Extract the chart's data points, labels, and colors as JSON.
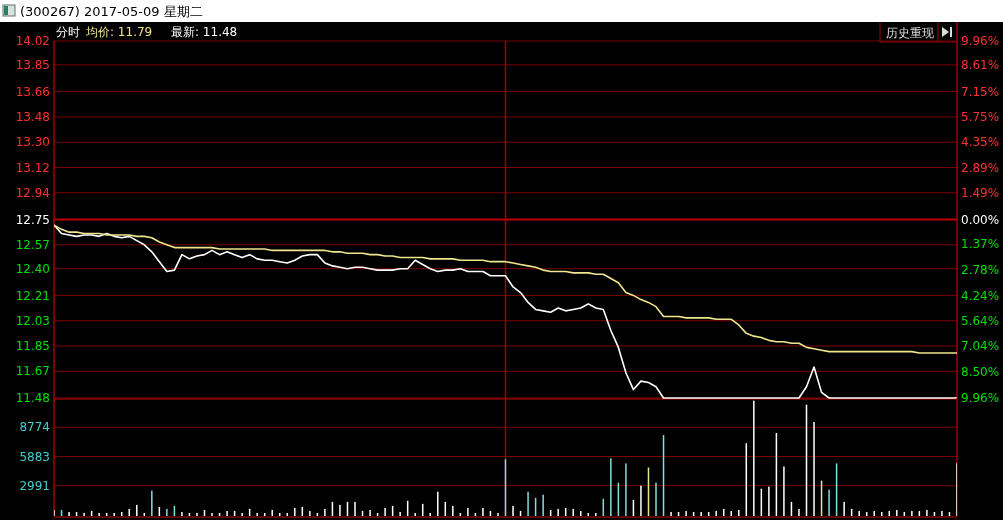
{
  "chart_data": [
    {
      "type": "line",
      "title": "(300267) 2017-05-09 星期二",
      "annotations": [
        "分时",
        "均价: 11.79",
        "最新: 11.48",
        "历史重现"
      ],
      "categories": [
        null,
        null,
        null,
        null,
        null,
        null,
        null,
        null,
        null,
        null,
        null,
        null,
        null,
        null,
        null,
        null,
        null,
        null,
        null,
        null,
        null,
        null,
        null,
        null,
        null,
        null,
        null,
        null,
        null,
        null,
        null,
        null,
        null,
        null,
        null,
        null,
        null,
        null,
        null,
        null,
        null,
        null,
        null,
        null,
        null,
        null,
        null,
        null,
        null,
        null,
        null,
        null,
        null,
        null,
        null,
        null,
        null,
        null,
        null,
        null,
        null,
        null,
        null,
        null,
        null,
        null,
        null,
        null,
        null,
        null,
        null,
        null,
        null,
        null,
        null,
        null,
        null,
        null,
        null,
        null,
        null,
        null,
        null,
        null,
        null,
        null,
        null,
        null,
        null,
        null,
        null,
        null,
        null,
        null,
        null,
        null,
        null,
        null,
        null,
        null,
        null,
        null,
        null,
        null,
        null,
        null,
        null,
        null,
        null,
        null,
        null,
        null,
        null,
        null,
        null,
        null,
        null,
        null,
        null,
        null,
        null
      ],
      "ylim": [
        11.48,
        14.02
      ],
      "yticks": [
        {
          "value": 11.48,
          "label": "11.48"
        },
        {
          "value": 11.67,
          "label": "11.67"
        },
        {
          "value": 11.85,
          "label": "11.85"
        },
        {
          "value": 12.03,
          "label": "12.03"
        },
        {
          "value": 12.21,
          "label": "12.21"
        },
        {
          "value": 12.4,
          "label": "12.40"
        },
        {
          "value": 12.57,
          "label": "12.57"
        },
        {
          "value": 12.75,
          "label": "12.75"
        },
        {
          "value": 12.94,
          "label": "12.94"
        },
        {
          "value": 13.12,
          "label": "13.12"
        },
        {
          "value": 13.3,
          "label": "13.30"
        },
        {
          "value": 13.48,
          "label": "13.48"
        },
        {
          "value": 13.66,
          "label": "13.66"
        },
        {
          "value": 13.85,
          "label": "13.85"
        },
        {
          "value": 14.02,
          "label": "14.02"
        }
      ],
      "y2lim": [
        -9.96,
        9.96
      ],
      "y2ticks": [
        {
          "value": -9.96,
          "label": "9.96%"
        },
        {
          "value": -8.5,
          "label": "8.50%"
        },
        {
          "value": -7.04,
          "label": "7.04%"
        },
        {
          "value": -5.64,
          "label": "5.64%"
        },
        {
          "value": -4.24,
          "label": "4.24%"
        },
        {
          "value": -2.78,
          "label": "2.78%"
        },
        {
          "value": -1.37,
          "label": "1.37%"
        },
        {
          "value": 0,
          "label": "0.00%"
        },
        {
          "value": 1.49,
          "label": "1.49%"
        },
        {
          "value": 2.89,
          "label": "2.89%"
        },
        {
          "value": 4.35,
          "label": "4.35%"
        },
        {
          "value": 5.75,
          "label": "5.75%"
        },
        {
          "value": 7.15,
          "label": "7.15%"
        },
        {
          "value": 8.61,
          "label": "8.61%"
        },
        {
          "value": 9.96,
          "label": "9.96%"
        }
      ],
      "tick_labels": "y",
      "grid": "y",
      "ref_lines": [
        {
          "axis": "y",
          "value": 12.75,
          "color": "#c00000"
        }
      ],
      "series": [
        {
          "color": "#ffffff",
          "values": [
            12.71,
            12.65,
            12.64,
            12.63,
            12.64,
            12.64,
            12.63,
            12.65,
            12.63,
            12.62,
            12.63,
            12.6,
            12.57,
            12.52,
            12.45,
            12.38,
            12.39,
            12.5,
            12.47,
            12.49,
            12.5,
            12.53,
            12.5,
            12.52,
            12.5,
            12.48,
            12.5,
            12.47,
            12.46,
            12.46,
            12.45,
            12.44,
            12.46,
            12.49,
            12.5,
            12.5,
            12.44,
            12.42,
            12.41,
            12.4,
            12.41,
            12.41,
            12.4,
            12.39,
            12.39,
            12.39,
            12.4,
            12.4,
            12.46,
            12.43,
            12.4,
            12.38,
            12.39,
            12.39,
            12.4,
            12.38,
            12.38,
            12.38,
            12.35,
            12.35,
            12.35,
            12.27,
            12.23,
            12.16,
            12.11,
            12.1,
            12.09,
            12.12,
            12.1,
            12.11,
            12.12,
            12.15,
            12.12,
            12.11,
            11.96,
            11.84,
            11.66,
            11.54,
            11.6,
            11.59,
            11.56,
            11.48,
            11.48,
            11.48,
            11.48,
            11.48,
            11.48,
            11.48,
            11.48,
            11.48,
            11.48,
            11.48,
            11.48,
            11.48,
            11.48,
            11.48,
            11.48,
            11.48,
            11.48,
            11.48,
            11.56,
            11.7,
            11.52,
            11.48,
            11.48,
            11.48,
            11.48,
            11.48,
            11.48,
            11.48,
            11.48,
            11.48,
            11.48,
            11.48,
            11.48,
            11.48,
            11.48,
            11.48,
            11.48,
            11.48,
            11.48
          ]
        },
        {
          "color": "#f0e68c",
          "values": [
            12.71,
            12.68,
            12.66,
            12.66,
            12.65,
            12.65,
            12.65,
            12.64,
            12.64,
            12.64,
            12.64,
            12.63,
            12.63,
            12.62,
            12.59,
            12.57,
            12.55,
            12.55,
            12.55,
            12.55,
            12.55,
            12.55,
            12.54,
            12.54,
            12.54,
            12.54,
            12.54,
            12.54,
            12.54,
            12.53,
            12.53,
            12.53,
            12.53,
            12.53,
            12.53,
            12.53,
            12.53,
            12.52,
            12.52,
            12.51,
            12.51,
            12.51,
            12.5,
            12.5,
            12.49,
            12.49,
            12.48,
            12.48,
            12.48,
            12.48,
            12.47,
            12.47,
            12.47,
            12.47,
            12.46,
            12.46,
            12.46,
            12.46,
            12.45,
            12.45,
            12.45,
            12.44,
            12.43,
            12.42,
            12.41,
            12.39,
            12.38,
            12.38,
            12.38,
            12.37,
            12.37,
            12.37,
            12.36,
            12.36,
            12.33,
            12.3,
            12.23,
            12.21,
            12.18,
            12.16,
            12.13,
            12.06,
            12.06,
            12.06,
            12.05,
            12.05,
            12.05,
            12.05,
            12.04,
            12.04,
            12.04,
            12.0,
            11.94,
            11.92,
            11.91,
            11.89,
            11.88,
            11.88,
            11.87,
            11.87,
            11.84,
            11.83,
            11.82,
            11.81,
            11.81,
            11.81,
            11.81,
            11.81,
            11.81,
            11.81,
            11.81,
            11.81,
            11.81,
            11.81,
            11.81,
            11.8,
            11.8,
            11.8,
            11.8,
            11.8,
            11.8
          ]
        }
      ]
    },
    {
      "type": "bar",
      "ylim": [
        0,
        11665
      ],
      "yticks": [
        2991,
        5883,
        8774
      ],
      "tick_labels": "y",
      "grid": "y",
      "categories": [
        null,
        null,
        null,
        null,
        null,
        null,
        null,
        null,
        null,
        null,
        null,
        null,
        null,
        null,
        null,
        null,
        null,
        null,
        null,
        null,
        null,
        null,
        null,
        null,
        null,
        null,
        null,
        null,
        null,
        null,
        null,
        null,
        null,
        null,
        null,
        null,
        null,
        null,
        null,
        null,
        null,
        null,
        null,
        null,
        null,
        null,
        null,
        null,
        null,
        null,
        null,
        null,
        null,
        null,
        null,
        null,
        null,
        null,
        null,
        null,
        null,
        null,
        null,
        null,
        null,
        null,
        null,
        null,
        null,
        null,
        null,
        null,
        null,
        null,
        null,
        null,
        null,
        null,
        null,
        null,
        null,
        null,
        null,
        null,
        null,
        null,
        null,
        null,
        null,
        null,
        null,
        null,
        null,
        null,
        null,
        null,
        null,
        null,
        null,
        null,
        null,
        null,
        null,
        null,
        null,
        null,
        null,
        null,
        null,
        null,
        null,
        null,
        null,
        null,
        null,
        null,
        null,
        null,
        null,
        null,
        null
      ],
      "values": [
        600,
        600,
        400,
        400,
        300,
        500,
        300,
        300,
        300,
        400,
        700,
        1100,
        300,
        2500,
        900,
        700,
        1000,
        400,
        300,
        300,
        600,
        300,
        300,
        500,
        500,
        300,
        700,
        300,
        300,
        600,
        300,
        300,
        800,
        900,
        500,
        300,
        700,
        1400,
        1100,
        1400,
        1400,
        500,
        600,
        300,
        800,
        1000,
        400,
        1500,
        300,
        1200,
        300,
        2400,
        1400,
        1000,
        300,
        800,
        300,
        800,
        500,
        300,
        5600,
        1000,
        500,
        2400,
        1800,
        2100,
        600,
        700,
        800,
        700,
        500,
        300,
        300,
        1700,
        5700,
        3300,
        5200,
        1600,
        3000,
        4800,
        3300,
        8000,
        400,
        400,
        500,
        400,
        400,
        400,
        500,
        700,
        500,
        600,
        7200,
        11400,
        2700,
        2900,
        8200,
        4900,
        1400,
        700,
        11000,
        9300,
        3500,
        2600,
        5200,
        1400,
        700,
        500,
        400,
        500,
        400,
        500,
        600,
        400,
        500,
        500,
        600,
        400,
        500,
        400,
        5200
      ],
      "colors": [
        "#ffffff",
        "#80e0e0",
        "#ffffff",
        "#ffffff",
        "#ffffff",
        "#ffffff",
        "#ffffff",
        "#ffffff",
        "#ffffff",
        "#ffffff",
        "#ffffff",
        "#ffffff",
        "#ffffff",
        "#80e0e0",
        "#ffffff",
        "#80e0e0",
        "#80e0e0",
        "#ffffff",
        "#ffffff",
        "#ffffff",
        "#ffffff",
        "#ffffff",
        "#ffffff",
        "#ffffff",
        "#ffffff",
        "#ffffff",
        "#ffffff",
        "#ffffff",
        "#ffffff",
        "#ffffff",
        "#ffffff",
        "#ffffff",
        "#ffffff",
        "#ffffff",
        "#ffffff",
        "#ffffff",
        "#ffffff",
        "#ffffff",
        "#ffffff",
        "#ffffff",
        "#ffffff",
        "#ffffff",
        "#ffffff",
        "#ffffff",
        "#ffffff",
        "#ffffff",
        "#ffffff",
        "#ffffff",
        "#ffffff",
        "#ffffff",
        "#ffffff",
        "#ffffff",
        "#ffffff",
        "#ffffff",
        "#ffffff",
        "#ffffff",
        "#ffffff",
        "#ffffff",
        "#ffffff",
        "#ffffff",
        "#80e0e0",
        "#ffffff",
        "#ffffff",
        "#80e0e0",
        "#80e0e0",
        "#80e0e0",
        "#ffffff",
        "#ffffff",
        "#ffffff",
        "#ffffff",
        "#ffffff",
        "#ffffff",
        "#ffffff",
        "#80e0e0",
        "#80e0e0",
        "#80e0e0",
        "#80e0e0",
        "#ffffff",
        "#ffffff",
        "#e6e68c",
        "#80e0e0",
        "#80e0e0",
        "#ffffff",
        "#ffffff",
        "#ffffff",
        "#ffffff",
        "#ffffff",
        "#ffffff",
        "#ffffff",
        "#ffffff",
        "#ffffff",
        "#ffffff",
        "#ffffff",
        "#ffffff",
        "#ffffff",
        "#ffffff",
        "#ffffff",
        "#ffffff",
        "#ffffff",
        "#ffffff",
        "#ffffff",
        "#ffffff",
        "#e6e68c",
        "#80e0e0",
        "#80e0e0",
        "#ffffff",
        "#ffffff",
        "#ffffff",
        "#ffffff",
        "#ffffff",
        "#ffffff",
        "#ffffff",
        "#ffffff",
        "#ffffff",
        "#ffffff",
        "#ffffff",
        "#ffffff",
        "#ffffff",
        "#ffffff",
        "#ffffff",
        "#ffffff"
      ]
    }
  ]
}
